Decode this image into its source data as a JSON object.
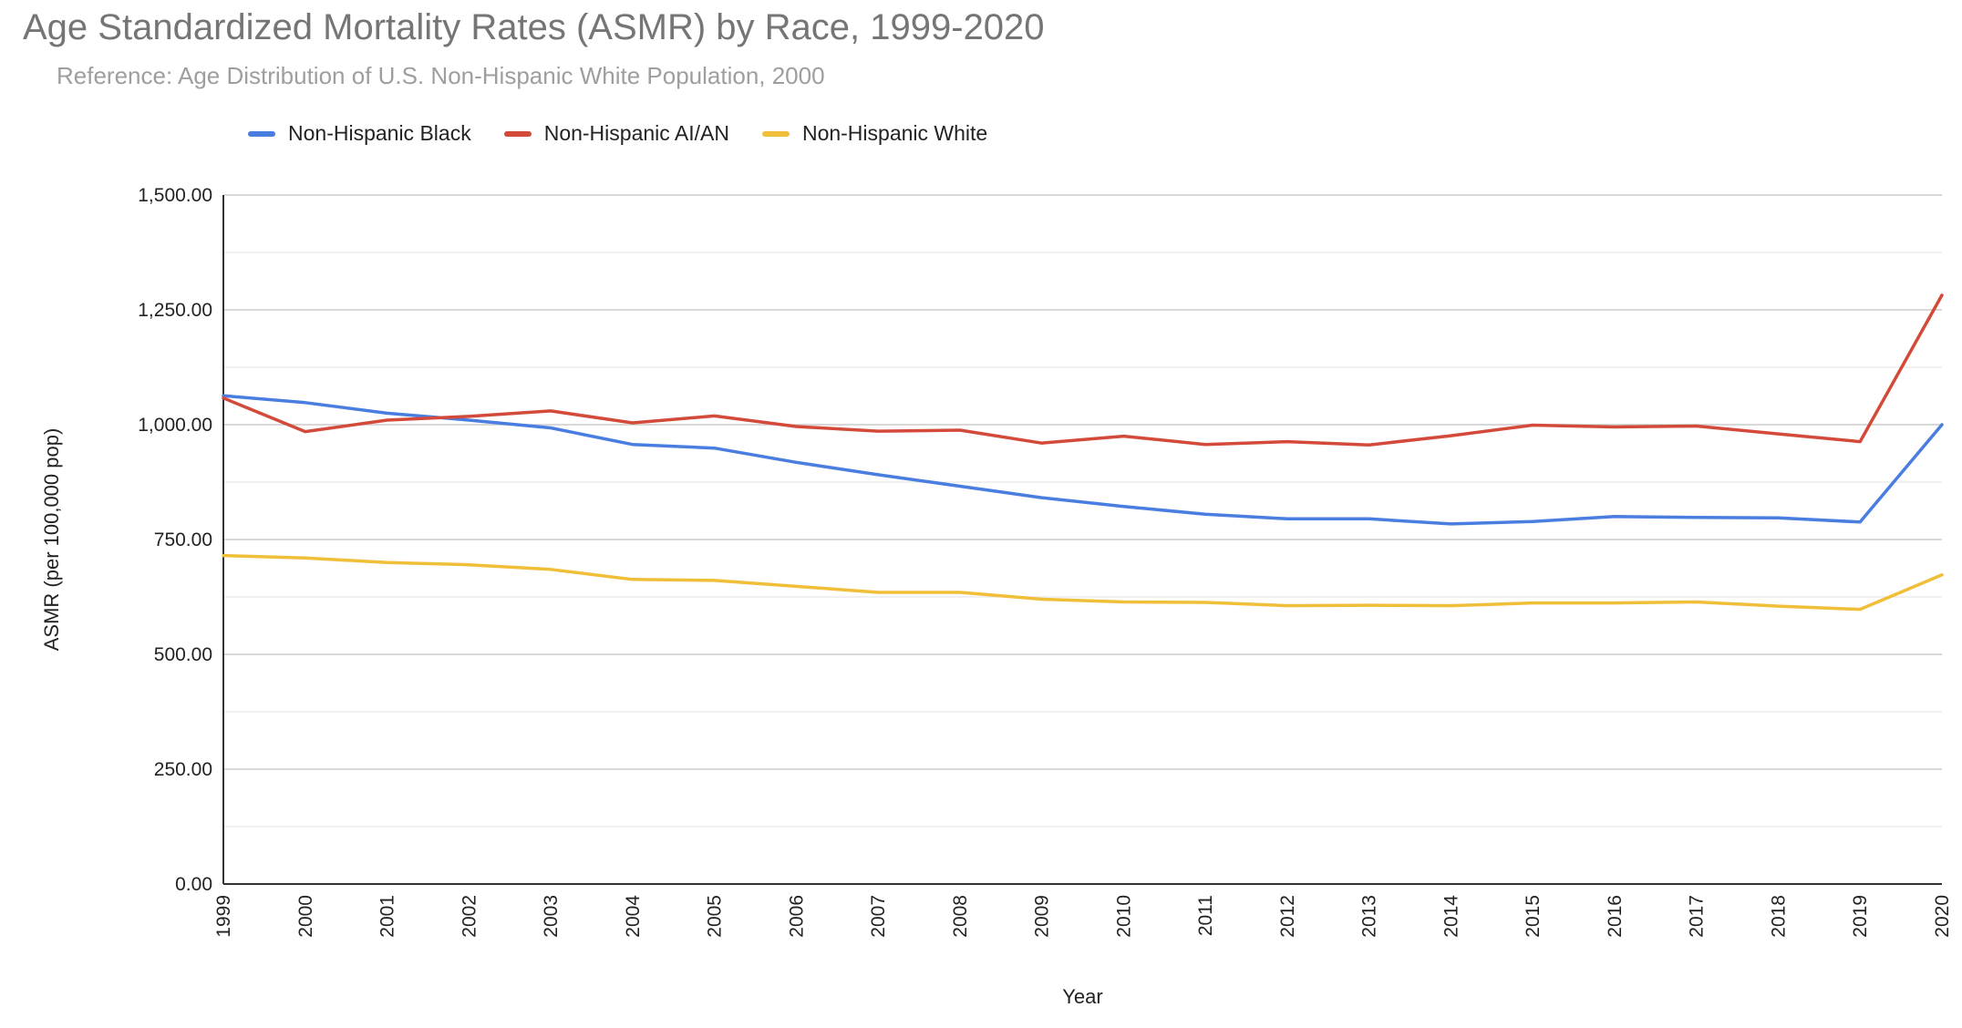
{
  "chart_data": {
    "type": "line",
    "title": "Age Standardized Mortality Rates (ASMR) by Race, 1999-2020",
    "subtitle": "Reference: Age Distribution of U.S. Non-Hispanic White Population, 2000",
    "xlabel": "Year",
    "ylabel": "ASMR (per 100,000 pop)",
    "x": [
      "1999",
      "2000",
      "2001",
      "2002",
      "2003",
      "2004",
      "2005",
      "2006",
      "2007",
      "2008",
      "2009",
      "2010",
      "2011",
      "2012",
      "2013",
      "2014",
      "2015",
      "2016",
      "2017",
      "2018",
      "2019",
      "2020"
    ],
    "ylim": [
      0,
      1500
    ],
    "yticks": [
      0,
      250,
      500,
      750,
      1000,
      1250,
      1500
    ],
    "ytick_labels": [
      "0.00",
      "250.00",
      "500.00",
      "750.00",
      "1,000.00",
      "1,250.00",
      "1,500.00"
    ],
    "legend_position": "top",
    "grid": true,
    "series": [
      {
        "name": "Non-Hispanic Black",
        "color": "#4a7de0",
        "values": [
          1063,
          1048,
          1025,
          1010,
          993,
          957,
          949,
          918,
          891,
          866,
          841,
          822,
          805,
          795,
          795,
          784,
          789,
          800,
          798,
          797,
          788,
          1000
        ]
      },
      {
        "name": "Non-Hispanic AI/AN",
        "color": "#d44a3a",
        "values": [
          1058,
          985,
          1010,
          1018,
          1030,
          1004,
          1019,
          996,
          986,
          988,
          960,
          975,
          957,
          963,
          956,
          976,
          999,
          995,
          997,
          980,
          963,
          1282
        ]
      },
      {
        "name": "Non-Hispanic White",
        "color": "#f0be38",
        "values": [
          715,
          710,
          700,
          695,
          685,
          663,
          661,
          648,
          635,
          635,
          620,
          614,
          613,
          606,
          607,
          606,
          612,
          612,
          614,
          605,
          598,
          673
        ]
      }
    ]
  }
}
